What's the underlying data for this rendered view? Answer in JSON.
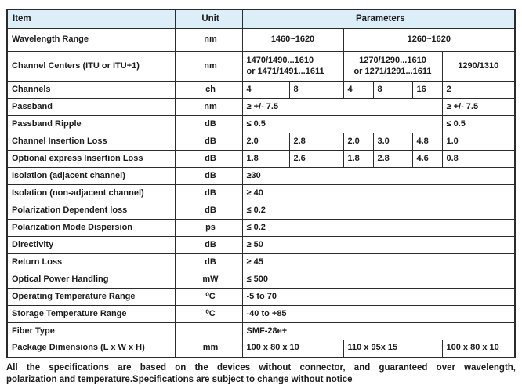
{
  "colors": {
    "header_bg": "#dceef7",
    "border": "#2b2b2b",
    "text": "#1c1c1c"
  },
  "header": {
    "item": "Item",
    "unit": "Unit",
    "parameters": "Parameters"
  },
  "table": {
    "rows": [
      {
        "item": "Wavelength Range",
        "unit": "nm",
        "cells": [
          {
            "text": "1460~1620",
            "span": 2,
            "align": "center"
          },
          {
            "text": "1260~1620",
            "span": 4,
            "align": "center"
          }
        ]
      },
      {
        "item": "Channel Centers (ITU or ITU+1)",
        "unit": "nm",
        "cells": [
          {
            "text": "1470/1490...1610\nor 1471/1491...1611",
            "span": 2,
            "align": "left"
          },
          {
            "text": "1270/1290...1610\nor 1271/1291...1611",
            "span": 3,
            "align": "center"
          },
          {
            "text": "1290/1310",
            "span": 1,
            "align": "center"
          }
        ]
      },
      {
        "item": "Channels",
        "unit": "ch",
        "cells": [
          {
            "text": "4",
            "span": 1
          },
          {
            "text": "8",
            "span": 1
          },
          {
            "text": "4",
            "span": 1
          },
          {
            "text": "8",
            "span": 1
          },
          {
            "text": "16",
            "span": 1
          },
          {
            "text": "2",
            "span": 1
          }
        ]
      },
      {
        "item": "Passband",
        "unit": "nm",
        "cells": [
          {
            "text": "≥ +/- 7.5",
            "span": 5
          },
          {
            "text": "≥ +/- 7.5",
            "span": 1
          }
        ]
      },
      {
        "item": "Passband Ripple",
        "unit": "dB",
        "cells": [
          {
            "text": "≤ 0.5",
            "span": 5
          },
          {
            "text": "≤ 0.5",
            "span": 1
          }
        ]
      },
      {
        "item": "Channel Insertion Loss",
        "unit": "dB",
        "cells": [
          {
            "text": "2.0",
            "span": 1
          },
          {
            "text": "2.8",
            "span": 1
          },
          {
            "text": "2.0",
            "span": 1
          },
          {
            "text": "3.0",
            "span": 1
          },
          {
            "text": "4.8",
            "span": 1
          },
          {
            "text": "1.0",
            "span": 1
          }
        ]
      },
      {
        "item": "Optional express Insertion Loss",
        "unit": "dB",
        "cells": [
          {
            "text": "1.8",
            "span": 1
          },
          {
            "text": "2.6",
            "span": 1
          },
          {
            "text": "1.8",
            "span": 1
          },
          {
            "text": "2.8",
            "span": 1
          },
          {
            "text": "4.6",
            "span": 1
          },
          {
            "text": "0.8",
            "span": 1
          }
        ]
      },
      {
        "item": "Isolation (adjacent channel)",
        "unit": "dB",
        "cells": [
          {
            "text": "≥30",
            "span": 6
          }
        ]
      },
      {
        "item": "Isolation (non-adjacent channel)",
        "unit": "dB",
        "cells": [
          {
            "text": "≥ 40",
            "span": 6
          }
        ]
      },
      {
        "item": "Polarization Dependent loss",
        "unit": "dB",
        "cells": [
          {
            "text": "≤ 0.2",
            "span": 6
          }
        ]
      },
      {
        "item": "Polarization Mode Dispersion",
        "unit": "ps",
        "cells": [
          {
            "text": "≤ 0.2",
            "span": 6
          }
        ]
      },
      {
        "item": "Directivity",
        "unit": "dB",
        "cells": [
          {
            "text": "≥ 50",
            "span": 6
          }
        ]
      },
      {
        "item": "Return Loss",
        "unit": "dB",
        "cells": [
          {
            "text": "≥ 45",
            "span": 6
          }
        ]
      },
      {
        "item": "Optical Power Handling",
        "unit": "mW",
        "cells": [
          {
            "text": "≤ 500",
            "span": 6
          }
        ]
      },
      {
        "item": "Operating Temperature Range",
        "unit": "⁰C",
        "cells": [
          {
            "text": "-5 to 70",
            "span": 6
          }
        ]
      },
      {
        "item": "Storage Temperature Range",
        "unit": "⁰C",
        "cells": [
          {
            "text": "-40 to +85",
            "span": 6
          }
        ]
      },
      {
        "item": "Fiber Type",
        "unit": "",
        "cells": [
          {
            "text": "SMF-28e+",
            "span": 6
          }
        ]
      },
      {
        "item": "Package Dimensions (L x W x H)",
        "unit": "mm",
        "cells": [
          {
            "text": "100 x 80 x 10",
            "span": 2
          },
          {
            "text": "110 x 95x 15",
            "span": 3
          },
          {
            "text": "100 x 80 x 10",
            "span": 1
          }
        ]
      }
    ]
  },
  "footnote": {
    "line1": "All the specifications are based on the devices without connector, and guaranteed over wavelength,",
    "line2": "polarization and temperature.Specifications are subject to change without notice"
  }
}
